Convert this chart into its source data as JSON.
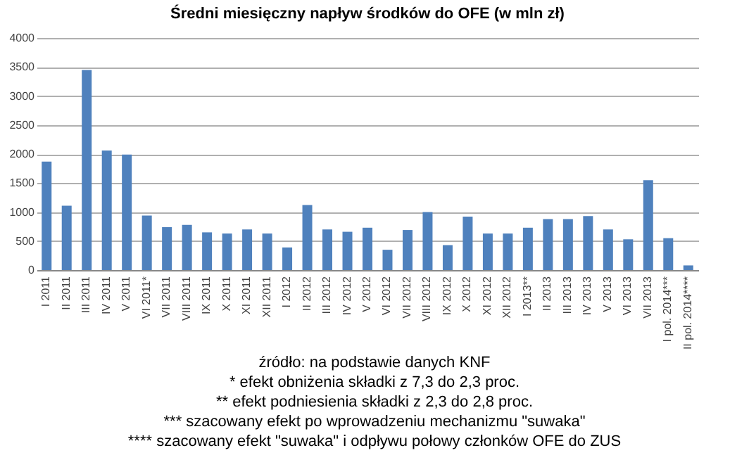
{
  "chart_data": {
    "type": "bar",
    "title": "Średni miesięczny napływ środków do OFE (w mln zł)",
    "categories": [
      "I 2011",
      "II 2011",
      "III 2011",
      "IV 2011",
      "V 2011",
      "VI 2011*",
      "VII 2011",
      "VIII 2011",
      "IX 2011",
      "X 2011",
      "XI 2011",
      "XII 2011",
      "I 2012",
      "II 2012",
      "III 2012",
      "IV 2012",
      "V 2012",
      "VI 2012",
      "VII 2012",
      "VIII 2012",
      "IX 2012",
      "X 2012",
      "XI 2012",
      "XII 2012",
      "I 2013**",
      "II 2013",
      "III 2013",
      "IV 2013",
      "V 2013",
      "VI 2013",
      "VII 2013",
      "I pol. 2014***",
      "II pol. 2014****"
    ],
    "values": [
      1870,
      1110,
      3450,
      2060,
      1990,
      940,
      740,
      780,
      650,
      630,
      700,
      630,
      390,
      1120,
      700,
      660,
      730,
      350,
      690,
      1000,
      430,
      920,
      630,
      630,
      730,
      880,
      880,
      930,
      700,
      530,
      1550,
      550,
      80
    ],
    "color": "#4f81bd",
    "ylim": [
      0,
      4000
    ],
    "yticks": [
      0,
      500,
      1000,
      1500,
      2000,
      2500,
      3000,
      3500,
      4000
    ],
    "grid": "y",
    "annotations": [
      "źródło: na podstawie danych KNF",
      "* efekt obniżenia składki z 7,3 do 2,3 proc.",
      "** efekt podniesienia składki z 2,3 do 2,8 proc.",
      "*** szacowany efekt po wprowadzeniu mechanizmu \"suwaka\"",
      "**** szacowany efekt \"suwaka\" i odpływu połowy członków OFE do ZUS"
    ]
  }
}
